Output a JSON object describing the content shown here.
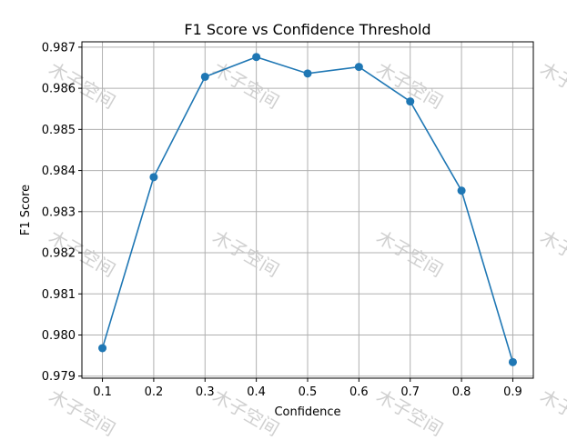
{
  "chart_data": {
    "type": "line",
    "title": "F1 Score vs Confidence Threshold",
    "xlabel": "Confidence",
    "ylabel": "F1 Score",
    "x": [
      0.1,
      0.2,
      0.3,
      0.4,
      0.5,
      0.6,
      0.7,
      0.8,
      0.9
    ],
    "y": [
      0.97968,
      0.98384,
      0.98628,
      0.98676,
      0.98636,
      0.98652,
      0.98568,
      0.98351,
      0.97934
    ],
    "xticks": [
      "0.1",
      "0.2",
      "0.3",
      "0.4",
      "0.5",
      "0.6",
      "0.7",
      "0.8",
      "0.9"
    ],
    "yticks": [
      "0.979",
      "0.980",
      "0.981",
      "0.982",
      "0.983",
      "0.984",
      "0.985",
      "0.986",
      "0.987"
    ],
    "xlim": [
      0.06,
      0.94
    ],
    "ylim": [
      0.97895,
      0.98713
    ],
    "grid": true,
    "color": "#1f77b4"
  },
  "watermark": "木子空间"
}
